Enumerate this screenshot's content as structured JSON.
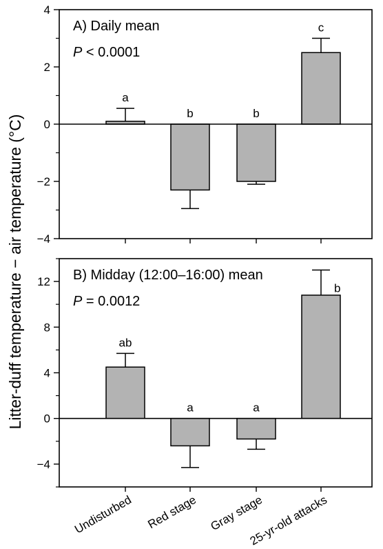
{
  "ylabel": "Litter-duff temperature − air temperature (°C)",
  "categories": [
    "Undisturbed",
    "Red stage",
    "Gray stage",
    "25-yr-old attacks"
  ],
  "colors": {
    "bar": "#b3b3b3",
    "stroke": "#000000"
  },
  "chart_data": [
    {
      "type": "bar",
      "title": "A) Daily mean",
      "p_label": "P",
      "p_text": " < 0.0001",
      "categories": [
        "Undisturbed",
        "Red stage",
        "Gray stage",
        "25-yr-old attacks"
      ],
      "values": [
        0.1,
        -2.3,
        -2.0,
        2.5
      ],
      "errors": [
        0.45,
        0.65,
        0.1,
        0.5
      ],
      "letters": [
        "a",
        "b",
        "b",
        "c"
      ],
      "ylim": [
        -4,
        4
      ],
      "yticks": [
        -4,
        -2,
        0,
        2,
        4
      ],
      "ytick_labels": [
        "−4",
        "−2",
        "0",
        "2",
        "4"
      ]
    },
    {
      "type": "bar",
      "title": "B) Midday (12:00–16:00) mean",
      "p_label": "P",
      "p_text": " = 0.0012",
      "categories": [
        "Undisturbed",
        "Red stage",
        "Gray stage",
        "25-yr-old attacks"
      ],
      "values": [
        4.5,
        -2.4,
        -1.8,
        10.8
      ],
      "errors": [
        1.2,
        1.9,
        0.9,
        2.2
      ],
      "letters": [
        "ab",
        "a",
        "a",
        "b"
      ],
      "ylim": [
        -6,
        14
      ],
      "yticks": [
        -4,
        0,
        4,
        8,
        12
      ],
      "ytick_labels": [
        "−4",
        "0",
        "4",
        "8",
        "12"
      ]
    }
  ]
}
